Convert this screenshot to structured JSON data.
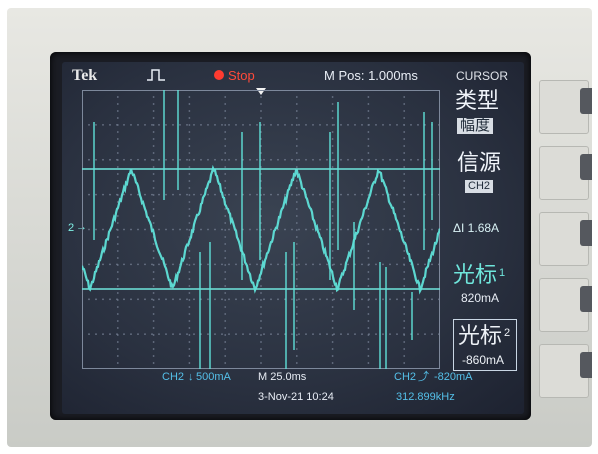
{
  "top_bar": {
    "brand": "Tek",
    "run_state": "Stop",
    "m_pos": "M Pos: 1.000ms",
    "menu_title": "CURSOR"
  },
  "side_menu": {
    "type_label": "类型",
    "type_value": "幅度",
    "source_label": "信源",
    "source_value": "CH2",
    "delta": "ΔI 1.68A",
    "cursor1_label": "光标",
    "cursor1_index": "1",
    "cursor1_value": "820mA",
    "cursor2_label": "光标",
    "cursor2_index": "2",
    "cursor2_value": "-860mA"
  },
  "channel_marker": "2",
  "status_bar": {
    "ch2_scale": "CH2",
    "ch2_scale_value": "500mA",
    "timebase": "M 25.0ms",
    "trigger": "CH2",
    "trigger_level": "-820mA",
    "date_time": "3-Nov-21 10:24",
    "frequency": "312.899kHz"
  },
  "colors": {
    "trace": "#5fe0d8",
    "cursor_line": "#6fe6dc",
    "stop": "#ff3b30",
    "status_blue": "#54bfe8"
  }
}
